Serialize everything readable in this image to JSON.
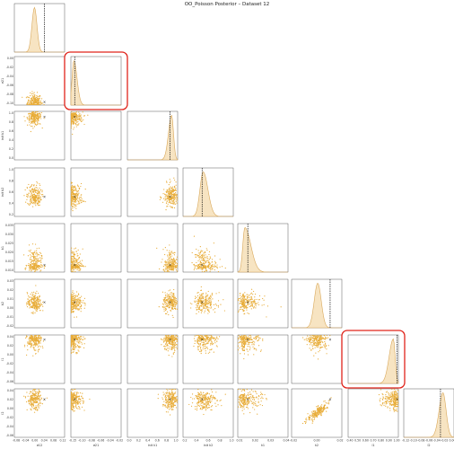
{
  "title": "OO_Poisson Posterior – Dataset 12",
  "colors": {
    "scatter": "#e8ad3a",
    "kde_fill": "#f7e4c2",
    "kde_line": "#d9a85a",
    "truth": "#111111",
    "highlight": "#e0241b"
  },
  "chart_data": {
    "type": "scatter",
    "variables": [
      "σ12",
      "σ21",
      "init k1",
      "init k2",
      "k1",
      "k2",
      "l1",
      "l2"
    ],
    "xlabels": [
      "σ12",
      "σ21",
      "init k1",
      "init k2",
      "k1",
      "k2",
      "l1",
      "l2"
    ],
    "ylabels": [
      "",
      "σ21",
      "init k1",
      "init k2",
      "k1",
      "k2",
      "l1",
      "l2"
    ],
    "xlim": [
      [
        -0.08,
        0.12
      ],
      [
        -0.15,
        -0.02
      ],
      [
        0.0,
        1.0
      ],
      [
        0.0,
        1.0
      ],
      [
        0.005,
        0.04
      ],
      [
        -0.03,
        0.03
      ],
      [
        0.4,
        1.0
      ],
      [
        -0.12,
        0.01
      ]
    ],
    "xticks": [
      [
        "-0.08",
        "-0.04",
        "0.00",
        "0.04",
        "0.08",
        "0.12"
      ],
      [
        "-0.15",
        "-0.10",
        "-0.08",
        "-0.06",
        "-0.04",
        "-0.02"
      ],
      [
        "0.0",
        "0.2",
        "0.4",
        "0.6",
        "0.8",
        "1.0"
      ],
      [
        "0.2",
        "0.4",
        "0.6",
        "0.8",
        "1.0"
      ],
      [
        "0.01",
        "0.02",
        "0.03",
        "0.04"
      ],
      [
        "-0.02",
        "0.00",
        "0.02"
      ],
      [
        "0.40",
        "0.50",
        "0.60",
        "0.70",
        "0.80",
        "0.90",
        "1.00"
      ],
      [
        "-0.12",
        "-0.10",
        "-0.08",
        "-0.06",
        "-0.04",
        "-0.02",
        "0.00"
      ]
    ],
    "yticks": [
      [],
      [
        "0.00",
        "-0.02",
        "-0.04",
        "-0.06",
        "-0.08",
        "-0.10"
      ],
      [
        "1.0",
        "0.8",
        "0.6",
        "0.4",
        "0.2",
        "0.0"
      ],
      [
        "1.0",
        "0.8",
        "0.6",
        "0.4",
        "0.2"
      ],
      [
        "0.035",
        "0.030",
        "0.025",
        "0.020",
        "0.015",
        "0.010"
      ],
      [
        "0.03",
        "0.02",
        "0.01",
        "0.00",
        "-0.01",
        "-0.02"
      ],
      [
        "0.04",
        "0.02",
        "0.00",
        "-0.02",
        "-0.04",
        "-0.06"
      ],
      [
        "0.04",
        "0.02",
        "0.00",
        "-0.02",
        "-0.04",
        "-0.06"
      ]
    ],
    "truth_lines": [
      0.04,
      -0.14,
      0.85,
      0.38,
      0.012,
      0.016,
      0.985,
      -0.025
    ],
    "marginal_peaks": [
      0.04,
      -0.14,
      0.88,
      0.4,
      0.01,
      0.016,
      0.985,
      -0.025
    ],
    "highlighted_panels": [
      [
        1,
        1
      ],
      [
        6,
        6
      ]
    ]
  }
}
